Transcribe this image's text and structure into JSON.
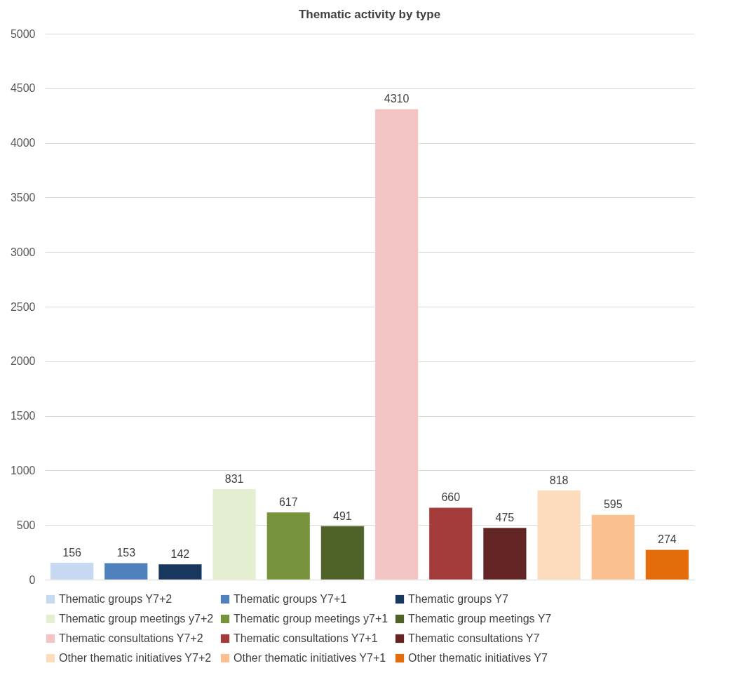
{
  "chart_data": {
    "type": "bar",
    "title": "Thematic activity by type",
    "categories": [
      null
    ],
    "series": [
      {
        "name": "Thematic groups Y7+2",
        "color": "#c6d9f1",
        "values": [
          156
        ]
      },
      {
        "name": "Thematic groups Y7+1",
        "color": "#4f81bd",
        "values": [
          153
        ]
      },
      {
        "name": "Thematic groups Y7",
        "color": "#17375e",
        "values": [
          142
        ]
      },
      {
        "name": "Thematic group meetings y7+2",
        "color": "#e3efd0",
        "values": [
          831
        ]
      },
      {
        "name": "Thematic group meetings y7+1",
        "color": "#77933c",
        "values": [
          617
        ]
      },
      {
        "name": "Thematic group meetings Y7",
        "color": "#4f6228",
        "values": [
          491
        ]
      },
      {
        "name": "Thematic consultations Y7+2",
        "color": "#f2c4c4",
        "values": [
          4310
        ]
      },
      {
        "name": "Thematic consultations Y7+1",
        "color": "#a33b3b",
        "values": [
          660
        ]
      },
      {
        "name": "Thematic consultations Y7",
        "color": "#632523",
        "values": [
          475
        ]
      },
      {
        "name": "Other thematic initiatives Y7+2",
        "color": "#fcdcbc",
        "values": [
          818
        ]
      },
      {
        "name": "Other thematic initiatives Y7+1",
        "color": "#fac090",
        "values": [
          595
        ]
      },
      {
        "name": "Other thematic initiatives Y7",
        "color": "#e46c0a",
        "values": [
          274
        ]
      }
    ],
    "ylim": [
      0,
      5000
    ],
    "yticks": [
      0,
      500,
      1000,
      1500,
      2000,
      2500,
      3000,
      3500,
      4000,
      4500,
      5000
    ],
    "grid": "y",
    "data_labels": true,
    "legend": "bottom"
  }
}
